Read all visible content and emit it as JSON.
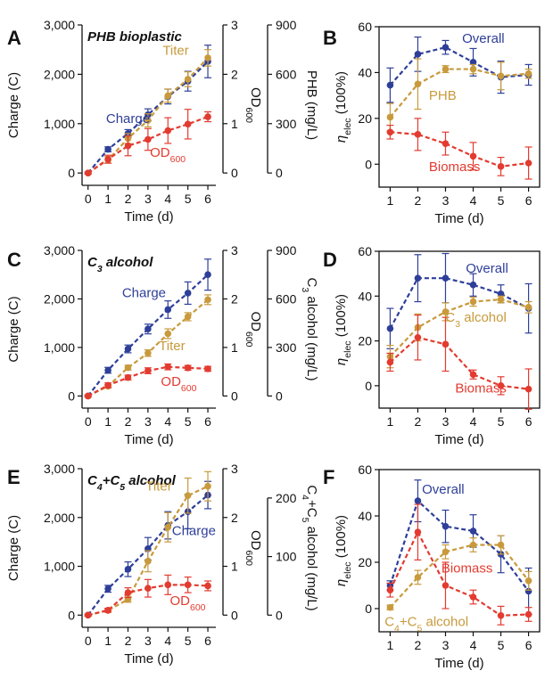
{
  "chart_data": [
    {
      "panel_letter": "A",
      "type": "line",
      "title": "PHB bioplastic",
      "xlabel": "Time (d)",
      "ylabel": "Charge (C)",
      "y2label": "OD600",
      "y3label": "PHB (mg/L)",
      "xlim": [
        -0.3,
        6.4
      ],
      "ylim": [
        -250,
        3000
      ],
      "y2lim": [
        -0.25,
        3
      ],
      "y3lim": [
        -75,
        900
      ],
      "x_ticks": [
        0,
        1,
        2,
        3,
        4,
        5,
        6
      ],
      "y_ticks": [
        "0",
        "1,000",
        "2,000",
        "3,000"
      ],
      "y_tick_values": [
        0,
        1000,
        2000,
        3000
      ],
      "y2_ticks": [
        0,
        1,
        2,
        3
      ],
      "y3_ticks": [
        0,
        300,
        600,
        900
      ],
      "series": [
        {
          "name": "Charge",
          "color": "#2e3f99",
          "axis": "charge",
          "x": [
            0,
            1,
            2,
            3,
            4,
            5,
            6
          ],
          "y": [
            0,
            480,
            800,
            1180,
            1550,
            1860,
            2260
          ],
          "err": [
            20,
            50,
            80,
            120,
            150,
            200,
            330
          ]
        },
        {
          "name": "Titer",
          "color": "#c89a3c",
          "axis": "titer",
          "x": [
            0,
            1,
            2,
            3,
            4,
            5,
            6
          ],
          "y": [
            0,
            80,
            210,
            320,
            470,
            570,
            700
          ],
          "err": [
            5,
            20,
            30,
            40,
            40,
            45,
            50
          ]
        },
        {
          "name": "OD600",
          "color": "#e33b30",
          "axis": "od",
          "x": [
            0,
            1,
            2,
            3,
            4,
            5,
            6
          ],
          "y": [
            0,
            0.28,
            0.55,
            0.68,
            0.86,
            0.99,
            1.14
          ],
          "err": [
            0.02,
            0.08,
            0.2,
            0.22,
            0.26,
            0.3,
            0.1
          ]
        }
      ],
      "labels": [
        {
          "text": "Charge",
          "series": "Charge",
          "x": 0.9,
          "axis": "charge",
          "y": 1100,
          "anchor": "start"
        },
        {
          "text": "Titer",
          "series": "Titer",
          "x": 5.05,
          "axis": "titer",
          "y": 745,
          "anchor": "end"
        },
        {
          "text": "OD",
          "sub": "600",
          "series": "OD600",
          "x": 3.1,
          "axis": "od",
          "y": 0.42,
          "anchor": "start"
        }
      ]
    },
    {
      "panel_letter": "B",
      "type": "line",
      "xlabel": "Time (d)",
      "ylabel_prefix": "η",
      "ylabel_sub": "elec",
      "ylabel_suffix": " (100%)",
      "xlim": [
        0.6,
        6.4
      ],
      "ylim": [
        -10,
        60
      ],
      "x_ticks": [
        1,
        2,
        3,
        4,
        5,
        6
      ],
      "y_ticks": [
        0,
        20,
        40,
        60
      ],
      "series": [
        {
          "name": "Overall",
          "color": "#2e3f99",
          "x": [
            1,
            2,
            3,
            4,
            5,
            6
          ],
          "y": [
            34.5,
            48,
            51,
            44.5,
            38,
            39
          ],
          "err": [
            7.5,
            7.5,
            3,
            6,
            7,
            4.5
          ]
        },
        {
          "name": "PHB",
          "color": "#c89a3c",
          "x": [
            1,
            2,
            3,
            4,
            5,
            6
          ],
          "y": [
            20.5,
            35,
            41.5,
            41.5,
            38.5,
            39.5
          ],
          "err": [
            6,
            11,
            1.5,
            2,
            6,
            2
          ]
        },
        {
          "name": "Biomass",
          "color": "#e33b30",
          "x": [
            1,
            2,
            3,
            4,
            5,
            6
          ],
          "y": [
            14,
            13,
            9,
            3.5,
            -1,
            0.5
          ],
          "err": [
            3,
            7,
            5,
            6,
            4,
            7
          ]
        }
      ],
      "labels": [
        {
          "text": "Overall",
          "series": "Overall",
          "x": 3.6,
          "y": 55,
          "anchor": "start"
        },
        {
          "text": "PHB",
          "series": "PHB",
          "x": 2.4,
          "y": 30,
          "anchor": "start"
        },
        {
          "text": "Biomass",
          "series": "Biomass",
          "x": 2.4,
          "y": -1,
          "anchor": "start"
        }
      ]
    },
    {
      "panel_letter": "C",
      "type": "line",
      "title_main": "C",
      "title_sub": "3",
      "title_rest": " alcohol",
      "xlabel": "Time (d)",
      "ylabel": "Charge (C)",
      "y2label": "OD600",
      "y3label_main": "C",
      "y3label_sub": "3",
      "y3label_rest": " alcohol (mg/L)",
      "xlim": [
        -0.3,
        6.4
      ],
      "ylim": [
        -250,
        3000
      ],
      "y2lim": [
        -0.25,
        3
      ],
      "y3lim": [
        -75,
        900
      ],
      "x_ticks": [
        0,
        1,
        2,
        3,
        4,
        5,
        6
      ],
      "y_ticks": [
        "0",
        "1,000",
        "2,000",
        "3,000"
      ],
      "y_tick_values": [
        0,
        1000,
        2000,
        3000
      ],
      "y2_ticks": [
        0,
        1,
        2,
        3
      ],
      "y3_ticks": [
        0,
        300,
        600,
        900
      ],
      "series": [
        {
          "name": "Charge",
          "color": "#2e3f99",
          "axis": "charge",
          "x": [
            0,
            1,
            2,
            3,
            4,
            5,
            6
          ],
          "y": [
            0,
            530,
            970,
            1380,
            1780,
            2120,
            2500
          ],
          "err": [
            20,
            60,
            80,
            100,
            180,
            230,
            320
          ]
        },
        {
          "name": "Titer",
          "color": "#c89a3c",
          "axis": "titer",
          "x": [
            0,
            1,
            2,
            3,
            4,
            5,
            6
          ],
          "y": [
            0,
            60,
            175,
            265,
            385,
            490,
            595
          ],
          "err": [
            5,
            10,
            15,
            20,
            30,
            25,
            30
          ]
        },
        {
          "name": "OD600",
          "color": "#e33b30",
          "axis": "od",
          "x": [
            0,
            1,
            2,
            3,
            4,
            5,
            6
          ],
          "y": [
            0,
            0.22,
            0.38,
            0.52,
            0.6,
            0.58,
            0.56
          ],
          "err": [
            0.02,
            0.05,
            0.05,
            0.06,
            0.06,
            0.05,
            0.05
          ]
        }
      ],
      "labels": [
        {
          "text": "Charge",
          "series": "Charge",
          "x": 3.9,
          "axis": "charge",
          "y": 2130,
          "anchor": "end"
        },
        {
          "text": "Titer",
          "series": "Titer",
          "x": 3.55,
          "axis": "titer",
          "y": 310,
          "anchor": "start"
        },
        {
          "text": "OD",
          "sub": "600",
          "series": "OD600",
          "x": 3.65,
          "axis": "od",
          "y": 0.3,
          "anchor": "start"
        }
      ]
    },
    {
      "panel_letter": "D",
      "type": "line",
      "xlabel": "Time (d)",
      "ylabel_prefix": "η",
      "ylabel_sub": "elec",
      "ylabel_suffix": " (100%)",
      "xlim": [
        0.6,
        6.4
      ],
      "ylim": [
        -10,
        60
      ],
      "x_ticks": [
        1,
        2,
        3,
        4,
        5,
        6
      ],
      "y_ticks": [
        0,
        20,
        40,
        60
      ],
      "series": [
        {
          "name": "Overall",
          "color": "#2e3f99",
          "x": [
            1,
            2,
            3,
            4,
            5,
            6
          ],
          "y": [
            25.5,
            48,
            48,
            45,
            41,
            34.5
          ],
          "err": [
            9,
            10.5,
            11,
            5,
            4,
            11
          ]
        },
        {
          "name": "C3 alcohol",
          "color": "#c89a3c",
          "x": [
            1,
            2,
            3,
            4,
            5,
            6
          ],
          "y": [
            13,
            26,
            33,
            37.5,
            38.5,
            35
          ],
          "err": [
            5,
            6,
            4,
            2,
            1.5,
            2.5
          ]
        },
        {
          "name": "Biomass",
          "color": "#e33b30",
          "x": [
            1,
            2,
            3,
            4,
            5,
            6
          ],
          "y": [
            10.5,
            21.5,
            18.5,
            5,
            0,
            -1.5
          ],
          "err": [
            4,
            10,
            12,
            2,
            4,
            9
          ]
        }
      ],
      "labels": [
        {
          "text": "Overall",
          "series": "Overall",
          "x": 4.5,
          "y": 52.5,
          "anchor": "middle"
        },
        {
          "text": "C",
          "sub": "3",
          "rest": " alcohol",
          "series": "C3 alcohol",
          "x": 4.1,
          "y": 30.5,
          "anchor": "middle"
        },
        {
          "text": "Biomass",
          "series": "Biomass",
          "x": 3.35,
          "y": -1,
          "anchor": "start"
        }
      ]
    },
    {
      "panel_letter": "E",
      "type": "line",
      "title_main": "C",
      "title_sub": "4",
      "title_mid": "+C",
      "title_sub2": "5",
      "title_rest": " alcohol",
      "xlabel": "Time (d)",
      "ylabel": "Charge (C)",
      "y2label": "OD600",
      "y3label_main": "C",
      "y3label_sub": "4",
      "y3label_mid": "+C",
      "y3label_sub2": "5",
      "y3label_rest": " alcohol (mg/L)",
      "xlim": [
        -0.3,
        6.4
      ],
      "ylim": [
        -250,
        3000
      ],
      "y2lim": [
        -0.25,
        3
      ],
      "y3lim": [
        -20.8,
        250
      ],
      "x_ticks": [
        0,
        1,
        2,
        3,
        4,
        5,
        6
      ],
      "y_ticks": [
        "0",
        "1,000",
        "2,000",
        "3,000"
      ],
      "y_tick_values": [
        0,
        1000,
        2000,
        3000
      ],
      "y2_ticks": [
        0,
        1,
        2,
        3
      ],
      "y3_ticks": [
        0,
        100,
        200
      ],
      "series": [
        {
          "name": "Charge",
          "color": "#2e3f99",
          "axis": "charge",
          "x": [
            0,
            1,
            2,
            3,
            4,
            5,
            6
          ],
          "y": [
            0,
            540,
            940,
            1360,
            1840,
            2120,
            2460
          ],
          "err": [
            20,
            70,
            150,
            230,
            280,
            350,
            280
          ]
        },
        {
          "name": "Titer",
          "color": "#c89a3c",
          "axis": "titer",
          "x": [
            0,
            1,
            2,
            3,
            4,
            5,
            6
          ],
          "y": [
            0,
            8,
            27,
            92,
            150,
            204,
            220
          ],
          "err": [
            1,
            3,
            5,
            18,
            25,
            30,
            25
          ]
        },
        {
          "name": "OD600",
          "color": "#e33b30",
          "axis": "od",
          "x": [
            0,
            1,
            2,
            3,
            4,
            5,
            6
          ],
          "y": [
            0,
            0.1,
            0.46,
            0.55,
            0.62,
            0.62,
            0.6
          ],
          "err": [
            0.02,
            0.04,
            0.1,
            0.18,
            0.2,
            0.16,
            0.1
          ]
        }
      ],
      "labels": [
        {
          "text": "Titer",
          "series": "Titer",
          "x": 4.2,
          "axis": "charge",
          "y": 2640,
          "anchor": "end"
        },
        {
          "text": "Charge",
          "series": "Charge",
          "x": 4.2,
          "axis": "charge",
          "y": 1730,
          "anchor": "start"
        },
        {
          "text": "OD",
          "sub": "600",
          "series": "OD600",
          "x": 4.1,
          "axis": "od",
          "y": 0.3,
          "anchor": "start"
        }
      ]
    },
    {
      "panel_letter": "F",
      "type": "line",
      "xlabel": "Time (d)",
      "ylabel_prefix": "η",
      "ylabel_sub": "elec",
      "ylabel_suffix": " (100%)",
      "xlim": [
        0.6,
        6.4
      ],
      "ylim": [
        -10,
        60
      ],
      "x_ticks": [
        1,
        2,
        3,
        4,
        5,
        6
      ],
      "y_ticks": [
        0,
        20,
        40,
        60
      ],
      "series": [
        {
          "name": "Overall",
          "color": "#2e3f99",
          "x": [
            1,
            2,
            3,
            4,
            5,
            6
          ],
          "y": [
            10,
            46.5,
            35.5,
            33.5,
            23.5,
            7.5
          ],
          "err": [
            2,
            9,
            7,
            7,
            8,
            10
          ]
        },
        {
          "name": "C4+C5 alcohol",
          "color": "#c89a3c",
          "x": [
            1,
            2,
            3,
            4,
            5,
            6
          ],
          "y": [
            0.5,
            13.5,
            24.5,
            27.5,
            27.5,
            12
          ],
          "err": [
            1,
            3,
            3,
            3,
            4,
            4
          ]
        },
        {
          "name": "Biomass",
          "color": "#e33b30",
          "x": [
            1,
            2,
            3,
            4,
            5,
            6
          ],
          "y": [
            8,
            33,
            10,
            5,
            -3,
            -2.5
          ],
          "err": [
            3,
            12,
            10,
            3,
            4,
            3
          ]
        }
      ],
      "labels": [
        {
          "text": "Overall",
          "series": "Overall",
          "x": 2.15,
          "y": 51.5,
          "anchor": "start"
        },
        {
          "text": "Biomass",
          "series": "Biomass",
          "x": 2.85,
          "y": 17.5,
          "anchor": "start"
        },
        {
          "text": "C",
          "sub": "4",
          "mid": "+C",
          "sub2": "5",
          "rest": " alcohol",
          "series": "C4+C5 alcohol",
          "x": 0.8,
          "y": -5.5,
          "anchor": "start"
        }
      ]
    }
  ]
}
